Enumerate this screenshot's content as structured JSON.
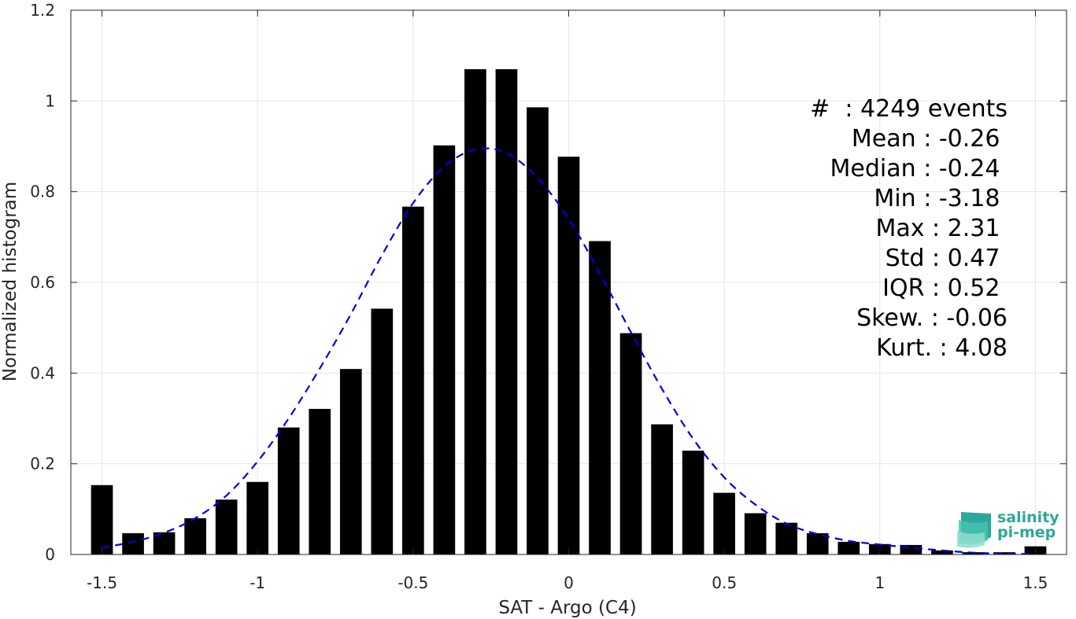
{
  "chart_data": {
    "type": "bar",
    "xlabel": "SAT - Argo (C4)",
    "ylabel": "Normalized histogram",
    "xlim": [
      -1.6,
      1.6
    ],
    "ylim": [
      0,
      1.2
    ],
    "xticks": [
      -1.5,
      -1,
      -0.5,
      0,
      0.5,
      1,
      1.5
    ],
    "xtick_labels": [
      "-1.5",
      "-1",
      "-0.5",
      "0",
      "0.5",
      "1",
      "1.5"
    ],
    "yticks": [
      0,
      0.2,
      0.4,
      0.6,
      0.8,
      1,
      1.2
    ],
    "ytick_labels": [
      "0",
      "0.2",
      "0.4",
      "0.6",
      "0.8",
      "1",
      "1.2"
    ],
    "grid": true,
    "bar_width": 0.07,
    "bar_color": "#000000",
    "x": [
      -1.5,
      -1.4,
      -1.3,
      -1.2,
      -1.1,
      -1.0,
      -0.9,
      -0.8,
      -0.7,
      -0.6,
      -0.5,
      -0.4,
      -0.3,
      -0.2,
      -0.1,
      0.0,
      0.1,
      0.2,
      0.3,
      0.4,
      0.5,
      0.6,
      0.7,
      0.8,
      0.9,
      1.0,
      1.1,
      1.2,
      1.3,
      1.4,
      1.5
    ],
    "values": [
      0.153,
      0.047,
      0.049,
      0.08,
      0.121,
      0.16,
      0.28,
      0.321,
      0.409,
      0.542,
      0.767,
      0.902,
      1.07,
      1.07,
      0.986,
      0.877,
      0.691,
      0.488,
      0.287,
      0.229,
      0.136,
      0.091,
      0.07,
      0.047,
      0.028,
      0.023,
      0.021,
      0.009,
      0.005,
      0.005,
      0.018
    ],
    "fit": {
      "style": "dashed",
      "color": "#0000e6",
      "x": [
        -1.5,
        -1.4,
        -1.3,
        -1.2,
        -1.1,
        -1.0,
        -0.9,
        -0.8,
        -0.7,
        -0.6,
        -0.5,
        -0.4,
        -0.3,
        -0.2,
        -0.1,
        0.0,
        0.1,
        0.2,
        0.3,
        0.4,
        0.5,
        0.6,
        0.7,
        0.8,
        0.9,
        1.0,
        1.1,
        1.2,
        1.3,
        1.4,
        1.5
      ],
      "y": [
        0.015,
        0.028,
        0.048,
        0.08,
        0.13,
        0.205,
        0.3,
        0.41,
        0.53,
        0.66,
        0.775,
        0.855,
        0.893,
        0.885,
        0.83,
        0.74,
        0.62,
        0.49,
        0.365,
        0.255,
        0.17,
        0.11,
        0.068,
        0.045,
        0.03,
        0.022,
        0.015,
        0.009,
        0.004,
        0.002,
        0.001
      ]
    }
  },
  "stats": [
    {
      "key": "#  ",
      "value": ": 4249 events"
    },
    {
      "key": "Mean ",
      "value": ": -0.26 "
    },
    {
      "key": "Median ",
      "value": ": -0.24 "
    },
    {
      "key": "Min ",
      "value": ": -3.18 "
    },
    {
      "key": "Max ",
      "value": ": 2.31 "
    },
    {
      "key": "Std ",
      "value": ": 0.47 "
    },
    {
      "key": "IQR ",
      "value": ": 0.52 "
    },
    {
      "key": "Skew. ",
      "value": ": -0.06"
    },
    {
      "key": "Kurt. ",
      "value": ": 4.08"
    }
  ],
  "logo": {
    "line1": "salinity",
    "line2": "pi-mep",
    "color": "#2ba89a"
  }
}
